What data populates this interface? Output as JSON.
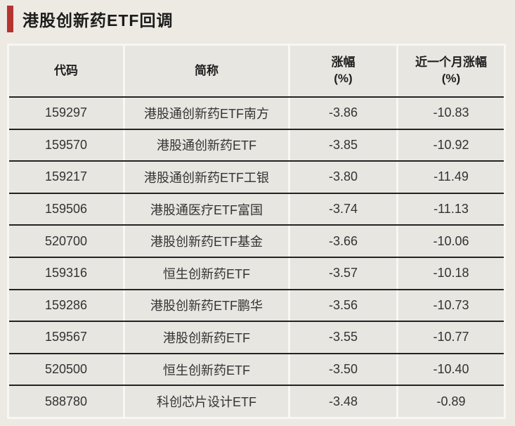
{
  "page": {
    "title": "港股创新药ETF回调",
    "accent_color": "#b5342f"
  },
  "table": {
    "columns": [
      {
        "label": "代码"
      },
      {
        "label": "简称"
      },
      {
        "label": "涨幅",
        "sub": "(%)"
      },
      {
        "label": "近一个月涨幅",
        "sub": "(%)"
      }
    ],
    "rows": [
      [
        "159297",
        "港股通创新药ETF南方",
        "-3.86",
        "-10.83"
      ],
      [
        "159570",
        "港股通创新药ETF",
        "-3.85",
        "-10.92"
      ],
      [
        "159217",
        "港股通创新药ETF工银",
        "-3.80",
        "-11.49"
      ],
      [
        "159506",
        "港股通医疗ETF富国",
        "-3.74",
        "-11.13"
      ],
      [
        "520700",
        "港股创新药ETF基金",
        "-3.66",
        "-10.06"
      ],
      [
        "159316",
        "恒生创新药ETF",
        "-3.57",
        "-10.18"
      ],
      [
        "159286",
        "港股创新药ETF鹏华",
        "-3.56",
        "-10.73"
      ],
      [
        "159567",
        "港股创新药ETF",
        "-3.55",
        "-10.77"
      ],
      [
        "520500",
        "恒生创新药ETF",
        "-3.50",
        "-10.40"
      ],
      [
        "588780",
        "科创芯片设计ETF",
        "-3.48",
        "-0.89"
      ]
    ]
  }
}
